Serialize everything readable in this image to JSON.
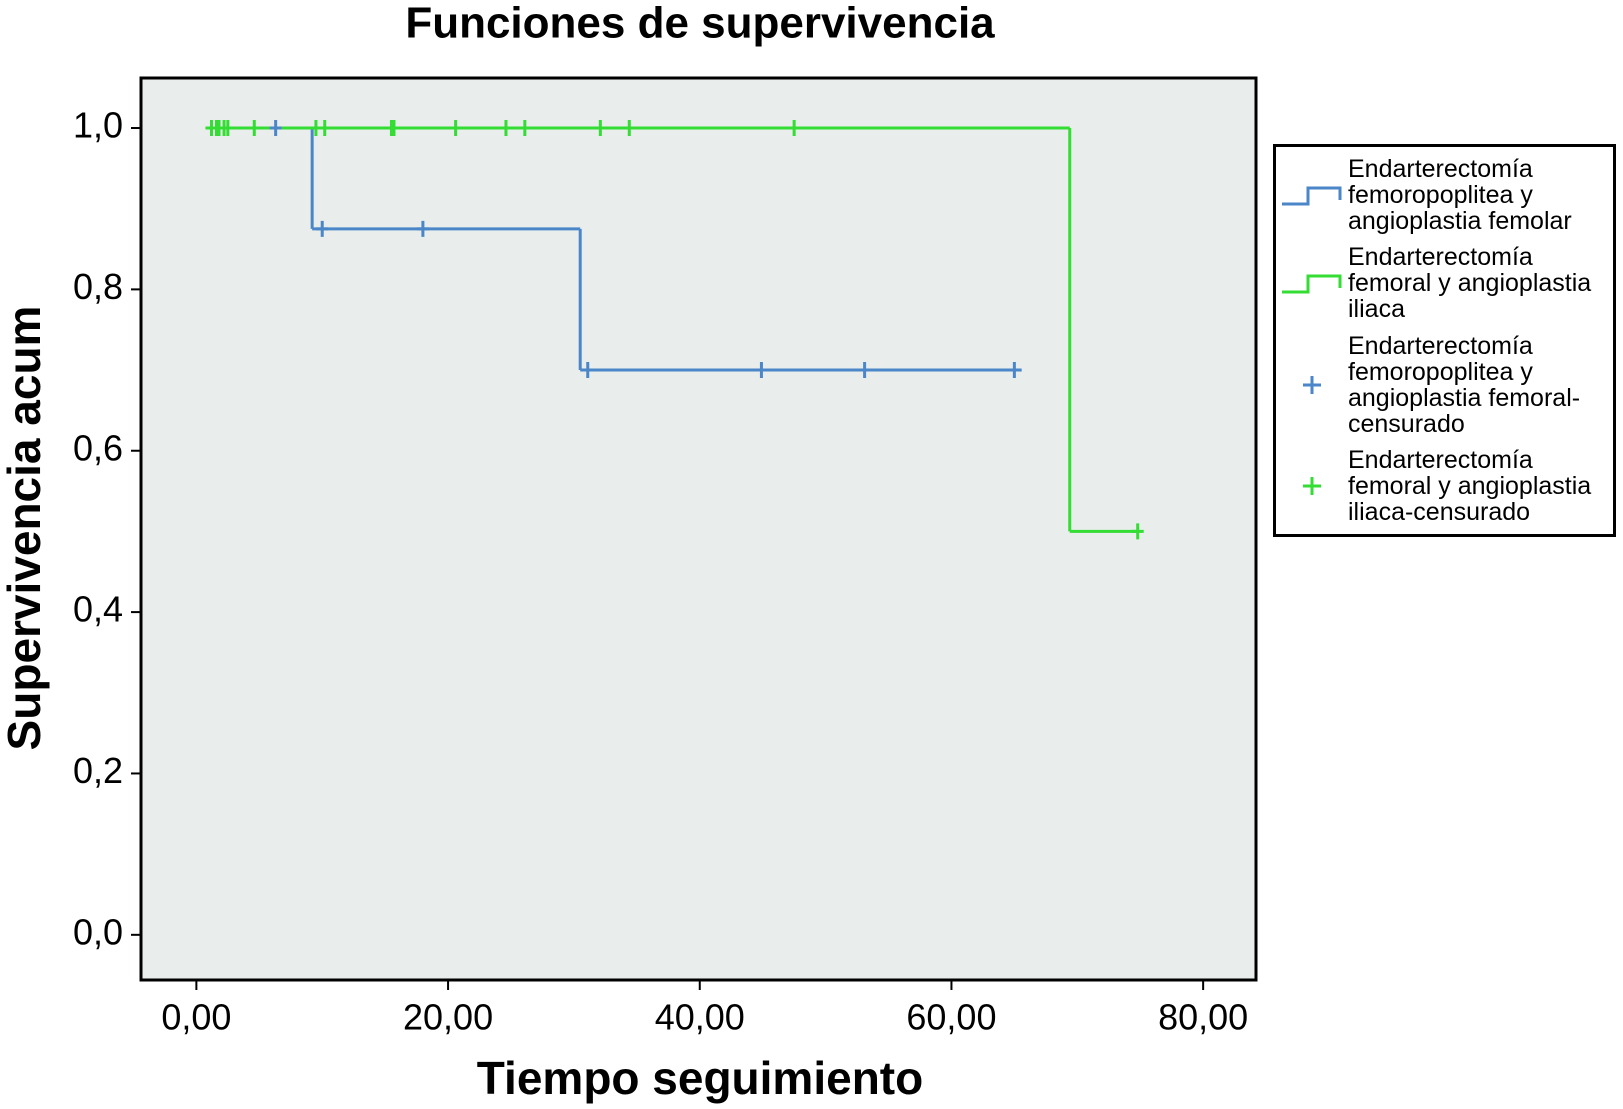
{
  "chart_data": {
    "type": "kaplan-meier",
    "title": "Funciones de supervivencia",
    "x_label": "Tiempo seguimiento",
    "y_label": "Supervivencia acum",
    "xlim": [
      -4.4,
      84.2
    ],
    "ylim": [
      -0.056,
      1.062
    ],
    "xticks": [
      {
        "value": 0,
        "label": "0,00"
      },
      {
        "value": 20,
        "label": "20,00"
      },
      {
        "value": 40,
        "label": "40,00"
      },
      {
        "value": 60,
        "label": "60,00"
      },
      {
        "value": 80,
        "label": "80,00"
      }
    ],
    "yticks": [
      {
        "value": 0,
        "label": "0,0"
      },
      {
        "value": 0.2,
        "label": "0,2"
      },
      {
        "value": 0.4,
        "label": "0,4"
      },
      {
        "value": 0.6,
        "label": "0,6"
      },
      {
        "value": 0.8,
        "label": "0,8"
      },
      {
        "value": 1,
        "label": "1,0"
      }
    ],
    "series": [
      {
        "name": "Endarterectomía femoropoplitea y angioplastia femolar",
        "color": "#4a86c8",
        "marker": "step",
        "x": [
          0.9,
          9.2,
          30.5,
          65.5
        ],
        "values": [
          1,
          0.875,
          0.7,
          0.7
        ]
      },
      {
        "name": "Endarterectomía femoral y angioplastia iliaca",
        "color": "#33dd33",
        "marker": "step",
        "x": [
          0.8,
          69.4,
          74.8
        ],
        "values": [
          1,
          0.5,
          0.5
        ]
      },
      {
        "name": "Endarterectomía femoropoplitea y angioplastia femoral-censurado",
        "color": "#4a86c8",
        "marker": "censor",
        "x": [
          6.3,
          10.0,
          18.0,
          31.1,
          44.9,
          53.1,
          65.0
        ],
        "values": [
          1,
          0.875,
          0.875,
          0.7,
          0.7,
          0.7,
          0.7
        ]
      },
      {
        "name": "Endarterectomía femoral y angioplastia iliaca-censurado",
        "color": "#33dd33",
        "marker": "censor",
        "x": [
          1.2,
          1.6,
          1.8,
          2.2,
          2.5,
          4.6,
          9.5,
          10.2,
          15.5,
          15.7,
          20.6,
          24.6,
          26.1,
          32.1,
          34.4,
          47.5,
          74.8
        ],
        "values": [
          1,
          1,
          1,
          1,
          1,
          1,
          1,
          1,
          1,
          1,
          1,
          1,
          1,
          1,
          1,
          1,
          0.5
        ]
      }
    ]
  }
}
